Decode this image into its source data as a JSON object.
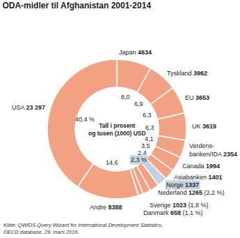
{
  "chart_data": {
    "type": "donut",
    "title": "ODA-midler til Afghanistan 2001-2014",
    "center_text": [
      "Tall i prosent",
      "og tusen (1000) USD"
    ],
    "categories": [
      "Japan",
      "Tyskland",
      "EU",
      "UK",
      "Verdens-\nbanken/IDA",
      "Canada",
      "Asiabanken",
      "Norge",
      "Nederland",
      "Sverige",
      "Danmark",
      "Andre",
      "USA"
    ],
    "values": [
      4634,
      3962,
      3653,
      3619,
      2354,
      1994,
      1401,
      1337,
      1265,
      1023,
      658,
      8388,
      23297
    ],
    "value_labels": [
      "4634",
      "3962",
      "3653",
      "3619",
      "2354",
      "1994",
      "1401",
      "1337",
      "1265",
      "1023",
      "658",
      "8388",
      "23 297"
    ],
    "percents": [
      8.0,
      6.9,
      6.3,
      6.3,
      4.1,
      3.5,
      2.4,
      2.3,
      2.2,
      1.8,
      1.1,
      14.6,
      40.4
    ],
    "percent_labels": [
      "8,0",
      "6,9",
      "6,3",
      "6,3",
      "4,1",
      "3,5",
      "2,4",
      "2,3 %",
      "(2,2 %)",
      "(1,8 %)",
      "(1,1 %)",
      "14,6",
      "40,4 %"
    ],
    "colors": [
      "#f2a283",
      "#f2a283",
      "#f2a283",
      "#f2a283",
      "#f2a283",
      "#f2a283",
      "#f2a283",
      "#c3d2df",
      "#f2a283",
      "#f2a283",
      "#f2a283",
      "#f2a283",
      "#f2a283"
    ],
    "data_labels": true,
    "source": [
      "Kilde: QWIDS Query Wizard for International Development Statistics,",
      "OECD database, 29. mars 2016."
    ]
  }
}
